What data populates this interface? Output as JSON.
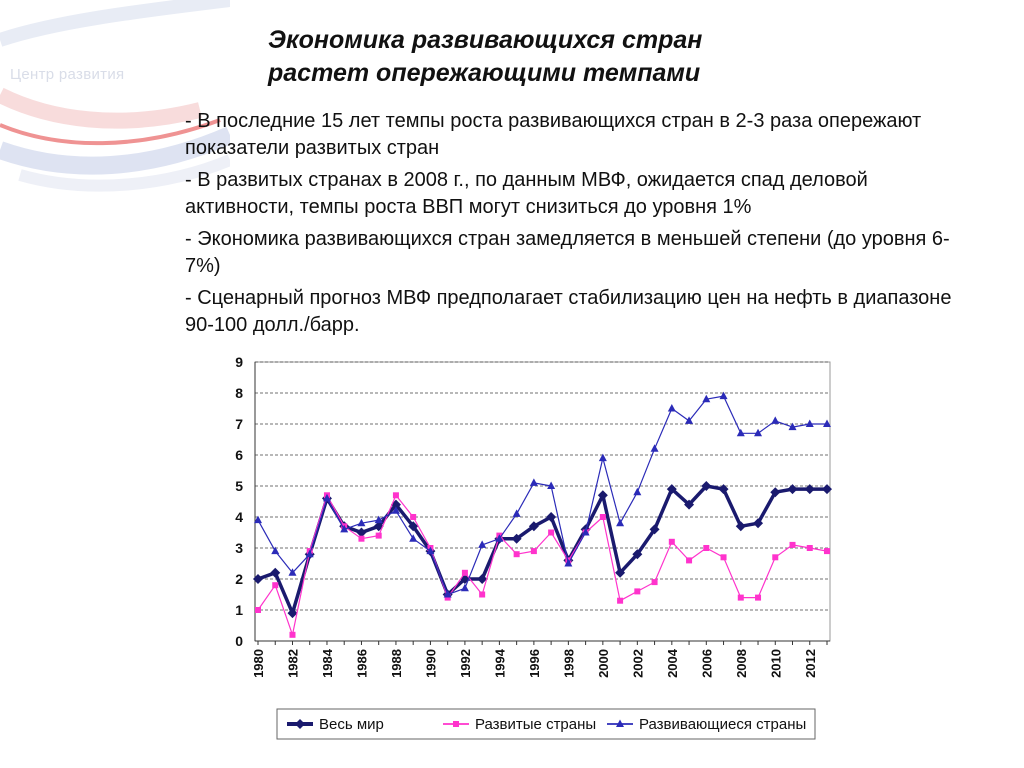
{
  "brand": "Центр развития",
  "title": {
    "line1": "Экономика развивающихся стран",
    "line2": "растет опережающими темпами"
  },
  "bullets": [
    "- В последние 15 лет темпы роста развивающихся стран в 2-3 раза опережают показатели развитых стран",
    "- В развитых странах в 2008 г., по данным МВФ, ожидается спад деловой активности, темпы роста ВВП могут снизиться до уровня 1%",
    "- Экономика развивающихся стран замедляется в меньшей степени (до уровня 6-7%)",
    "- Сценарный прогноз МВФ предполагает стабилизацию цен на нефть в диапазоне 90-100 долл./барр."
  ],
  "colors": {
    "world": "#1a1a6e",
    "developed": "#ff33cc",
    "developing": "#2b2bb8",
    "brand_red": "#e23b3b",
    "brand_blue": "#4a5fb0"
  },
  "chart_data": {
    "type": "line",
    "x": [
      1980,
      1981,
      1982,
      1983,
      1984,
      1985,
      1986,
      1987,
      1988,
      1989,
      1990,
      1991,
      1992,
      1993,
      1994,
      1995,
      1996,
      1997,
      1998,
      1999,
      2000,
      2001,
      2002,
      2003,
      2004,
      2005,
      2006,
      2007,
      2008,
      2009,
      2010,
      2011,
      2012,
      2013
    ],
    "x_tick_labels": [
      "1980",
      "1982",
      "1984",
      "1986",
      "1988",
      "1990",
      "1992",
      "1994",
      "1996",
      "1998",
      "2000",
      "2002",
      "2004",
      "2006",
      "2008",
      "2010",
      "2012"
    ],
    "ylim": [
      0,
      9
    ],
    "y_ticks": [
      "0",
      "1",
      "2",
      "3",
      "4",
      "5",
      "6",
      "7",
      "8",
      "9"
    ],
    "grid": true,
    "legend": "bottom",
    "series": [
      {
        "name": "Весь мир",
        "marker": "diamond",
        "values": [
          2.0,
          2.2,
          0.9,
          2.8,
          4.6,
          3.7,
          3.5,
          3.7,
          4.4,
          3.7,
          2.9,
          1.5,
          2.0,
          2.0,
          3.3,
          3.3,
          3.7,
          4.0,
          2.6,
          3.6,
          4.7,
          2.2,
          2.8,
          3.6,
          4.9,
          4.4,
          5.0,
          4.9,
          3.7,
          3.8,
          4.8,
          4.9,
          4.9,
          4.9
        ]
      },
      {
        "name": "Развитые страны",
        "marker": "square",
        "values": [
          1.0,
          1.8,
          0.2,
          2.9,
          4.7,
          3.7,
          3.3,
          3.4,
          4.7,
          4.0,
          3.0,
          1.4,
          2.2,
          1.5,
          3.4,
          2.8,
          2.9,
          3.5,
          2.6,
          3.5,
          4.0,
          1.3,
          1.6,
          1.9,
          3.2,
          2.6,
          3.0,
          2.7,
          1.4,
          1.4,
          2.7,
          3.1,
          3.0,
          2.9
        ]
      },
      {
        "name": "Развивающиеся страны",
        "marker": "triangle",
        "values": [
          3.9,
          2.9,
          2.2,
          2.8,
          4.6,
          3.6,
          3.8,
          3.9,
          4.2,
          3.3,
          2.9,
          1.5,
          1.7,
          3.1,
          3.3,
          4.1,
          5.1,
          5.0,
          2.5,
          3.5,
          5.9,
          3.8,
          4.8,
          6.2,
          7.5,
          7.1,
          7.8,
          7.9,
          6.7,
          6.7,
          7.1,
          6.9,
          7.0,
          7.0
        ]
      }
    ]
  }
}
